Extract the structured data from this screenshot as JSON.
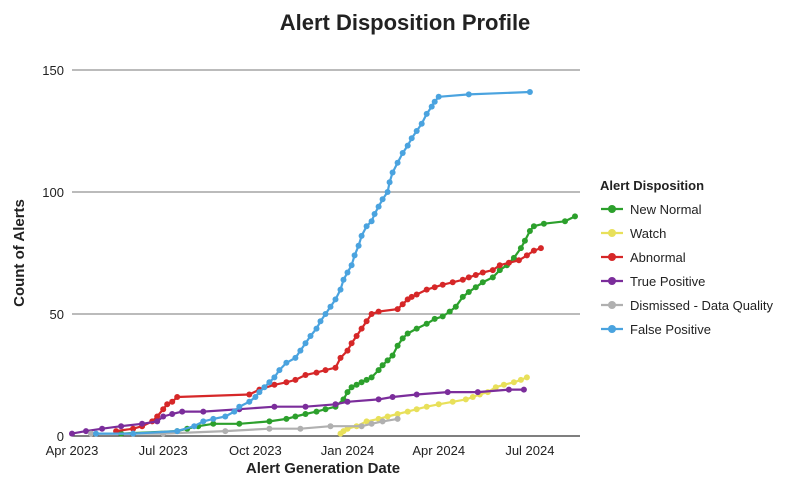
{
  "chart_data": {
    "type": "line",
    "title": "Alert Disposition Profile",
    "xlabel": "Alert Generation Date",
    "ylabel": "Count of Alerts",
    "ylim": [
      0,
      150
    ],
    "xlim": [
      "2023-04-01",
      "2024-08-20"
    ],
    "x_ticks": [
      {
        "date": "2023-04-01",
        "label": "Apr 2023"
      },
      {
        "date": "2023-07-01",
        "label": "Jul 2023"
      },
      {
        "date": "2023-10-01",
        "label": "Oct 2023"
      },
      {
        "date": "2024-01-01",
        "label": "Jan 2024"
      },
      {
        "date": "2024-04-01",
        "label": "Apr 2024"
      },
      {
        "date": "2024-07-01",
        "label": "Jul 2024"
      }
    ],
    "y_ticks": [
      0,
      50,
      100,
      150
    ],
    "grid": "horizontal",
    "legend": {
      "title": "Alert Disposition",
      "position": "right"
    },
    "series": [
      {
        "name": "New Normal",
        "color": "#2ca02c",
        "points": [
          [
            "2023-05-20",
            1
          ],
          [
            "2023-07-15",
            2
          ],
          [
            "2023-07-25",
            3
          ],
          [
            "2023-08-05",
            4
          ],
          [
            "2023-08-20",
            5
          ],
          [
            "2023-09-15",
            5
          ],
          [
            "2023-10-15",
            6
          ],
          [
            "2023-11-01",
            7
          ],
          [
            "2023-11-10",
            8
          ],
          [
            "2023-11-20",
            9
          ],
          [
            "2023-12-01",
            10
          ],
          [
            "2023-12-10",
            11
          ],
          [
            "2023-12-20",
            12
          ],
          [
            "2023-12-28",
            15
          ],
          [
            "2024-01-01",
            18
          ],
          [
            "2024-01-05",
            20
          ],
          [
            "2024-01-10",
            21
          ],
          [
            "2024-01-15",
            22
          ],
          [
            "2024-01-20",
            23
          ],
          [
            "2024-01-25",
            24
          ],
          [
            "2024-02-01",
            27
          ],
          [
            "2024-02-05",
            29
          ],
          [
            "2024-02-10",
            31
          ],
          [
            "2024-02-15",
            33
          ],
          [
            "2024-02-20",
            37
          ],
          [
            "2024-02-25",
            40
          ],
          [
            "2024-03-01",
            42
          ],
          [
            "2024-03-10",
            44
          ],
          [
            "2024-03-20",
            46
          ],
          [
            "2024-03-28",
            48
          ],
          [
            "2024-04-05",
            49
          ],
          [
            "2024-04-12",
            51
          ],
          [
            "2024-04-18",
            53
          ],
          [
            "2024-04-25",
            57
          ],
          [
            "2024-05-01",
            59
          ],
          [
            "2024-05-08",
            61
          ],
          [
            "2024-05-15",
            63
          ],
          [
            "2024-05-25",
            65
          ],
          [
            "2024-06-01",
            68
          ],
          [
            "2024-06-08",
            70
          ],
          [
            "2024-06-15",
            73
          ],
          [
            "2024-06-22",
            77
          ],
          [
            "2024-06-26",
            80
          ],
          [
            "2024-07-01",
            84
          ],
          [
            "2024-07-05",
            86
          ],
          [
            "2024-07-15",
            87
          ],
          [
            "2024-08-05",
            88
          ],
          [
            "2024-08-15",
            90
          ]
        ]
      },
      {
        "name": "Watch",
        "color": "#e8e05a",
        "points": [
          [
            "2023-12-25",
            1
          ],
          [
            "2023-12-28",
            2
          ],
          [
            "2024-01-01",
            3
          ],
          [
            "2024-01-10",
            4
          ],
          [
            "2024-01-20",
            6
          ],
          [
            "2024-02-01",
            7
          ],
          [
            "2024-02-10",
            8
          ],
          [
            "2024-02-20",
            9
          ],
          [
            "2024-03-01",
            10
          ],
          [
            "2024-03-10",
            11
          ],
          [
            "2024-03-20",
            12
          ],
          [
            "2024-04-01",
            13
          ],
          [
            "2024-04-15",
            14
          ],
          [
            "2024-04-28",
            15
          ],
          [
            "2024-05-05",
            16
          ],
          [
            "2024-05-12",
            17
          ],
          [
            "2024-05-20",
            18
          ],
          [
            "2024-05-28",
            20
          ],
          [
            "2024-06-05",
            21
          ],
          [
            "2024-06-15",
            22
          ],
          [
            "2024-06-22",
            23
          ],
          [
            "2024-06-28",
            24
          ]
        ]
      },
      {
        "name": "Abnormal",
        "color": "#d62728",
        "points": [
          [
            "2023-05-15",
            2
          ],
          [
            "2023-06-01",
            3
          ],
          [
            "2023-06-10",
            4
          ],
          [
            "2023-06-20",
            6
          ],
          [
            "2023-06-25",
            8
          ],
          [
            "2023-07-01",
            11
          ],
          [
            "2023-07-05",
            13
          ],
          [
            "2023-07-10",
            14
          ],
          [
            "2023-07-15",
            16
          ],
          [
            "2023-09-25",
            17
          ],
          [
            "2023-10-05",
            19
          ],
          [
            "2023-10-20",
            21
          ],
          [
            "2023-11-01",
            22
          ],
          [
            "2023-11-10",
            23
          ],
          [
            "2023-11-20",
            25
          ],
          [
            "2023-12-01",
            26
          ],
          [
            "2023-12-10",
            27
          ],
          [
            "2023-12-20",
            28
          ],
          [
            "2023-12-25",
            32
          ],
          [
            "2024-01-01",
            35
          ],
          [
            "2024-01-05",
            38
          ],
          [
            "2024-01-10",
            41
          ],
          [
            "2024-01-15",
            44
          ],
          [
            "2024-01-20",
            47
          ],
          [
            "2024-01-25",
            50
          ],
          [
            "2024-02-01",
            51
          ],
          [
            "2024-02-20",
            52
          ],
          [
            "2024-02-25",
            54
          ],
          [
            "2024-03-01",
            56
          ],
          [
            "2024-03-05",
            57
          ],
          [
            "2024-03-10",
            58
          ],
          [
            "2024-03-20",
            60
          ],
          [
            "2024-03-28",
            61
          ],
          [
            "2024-04-05",
            62
          ],
          [
            "2024-04-15",
            63
          ],
          [
            "2024-04-25",
            64
          ],
          [
            "2024-05-01",
            65
          ],
          [
            "2024-05-08",
            66
          ],
          [
            "2024-05-15",
            67
          ],
          [
            "2024-05-25",
            68
          ],
          [
            "2024-06-01",
            70
          ],
          [
            "2024-06-10",
            71
          ],
          [
            "2024-06-20",
            72
          ],
          [
            "2024-06-28",
            74
          ],
          [
            "2024-07-05",
            76
          ],
          [
            "2024-07-12",
            77
          ]
        ]
      },
      {
        "name": "True Positive",
        "color": "#7b2d9b",
        "points": [
          [
            "2023-04-01",
            1
          ],
          [
            "2023-04-15",
            2
          ],
          [
            "2023-05-01",
            3
          ],
          [
            "2023-05-20",
            4
          ],
          [
            "2023-06-10",
            5
          ],
          [
            "2023-06-25",
            6
          ],
          [
            "2023-07-01",
            8
          ],
          [
            "2023-07-10",
            9
          ],
          [
            "2023-07-20",
            10
          ],
          [
            "2023-08-10",
            10
          ],
          [
            "2023-09-15",
            11
          ],
          [
            "2023-10-20",
            12
          ],
          [
            "2023-11-20",
            12
          ],
          [
            "2023-12-20",
            13
          ],
          [
            "2024-01-01",
            14
          ],
          [
            "2024-02-01",
            15
          ],
          [
            "2024-02-15",
            16
          ],
          [
            "2024-03-10",
            17
          ],
          [
            "2024-04-10",
            18
          ],
          [
            "2024-05-10",
            18
          ],
          [
            "2024-06-10",
            19
          ],
          [
            "2024-06-25",
            19
          ]
        ]
      },
      {
        "name": "Dismissed - Data Quality",
        "color": "#b0b0b0",
        "points": [
          [
            "2023-04-20",
            1
          ],
          [
            "2023-06-01",
            1
          ],
          [
            "2023-07-01",
            1
          ],
          [
            "2023-09-01",
            2
          ],
          [
            "2023-10-15",
            3
          ],
          [
            "2023-11-15",
            3
          ],
          [
            "2023-12-15",
            4
          ],
          [
            "2024-01-15",
            4
          ],
          [
            "2024-01-25",
            5
          ],
          [
            "2024-02-05",
            6
          ],
          [
            "2024-02-20",
            7
          ]
        ]
      },
      {
        "name": "False Positive",
        "color": "#4aa3df",
        "points": [
          [
            "2023-04-25",
            1
          ],
          [
            "2023-06-01",
            1
          ],
          [
            "2023-07-15",
            2
          ],
          [
            "2023-08-01",
            4
          ],
          [
            "2023-08-10",
            6
          ],
          [
            "2023-08-20",
            7
          ],
          [
            "2023-09-01",
            8
          ],
          [
            "2023-09-10",
            10
          ],
          [
            "2023-09-15",
            12
          ],
          [
            "2023-09-25",
            14
          ],
          [
            "2023-10-01",
            16
          ],
          [
            "2023-10-05",
            18
          ],
          [
            "2023-10-10",
            20
          ],
          [
            "2023-10-15",
            22
          ],
          [
            "2023-10-20",
            24
          ],
          [
            "2023-10-25",
            27
          ],
          [
            "2023-11-01",
            30
          ],
          [
            "2023-11-10",
            32
          ],
          [
            "2023-11-15",
            35
          ],
          [
            "2023-11-20",
            38
          ],
          [
            "2023-11-25",
            41
          ],
          [
            "2023-12-01",
            44
          ],
          [
            "2023-12-05",
            47
          ],
          [
            "2023-12-10",
            50
          ],
          [
            "2023-12-15",
            53
          ],
          [
            "2023-12-20",
            56
          ],
          [
            "2023-12-25",
            60
          ],
          [
            "2023-12-28",
            64
          ],
          [
            "2024-01-01",
            67
          ],
          [
            "2024-01-05",
            70
          ],
          [
            "2024-01-08",
            74
          ],
          [
            "2024-01-12",
            78
          ],
          [
            "2024-01-15",
            82
          ],
          [
            "2024-01-20",
            86
          ],
          [
            "2024-01-25",
            88
          ],
          [
            "2024-01-28",
            91
          ],
          [
            "2024-02-01",
            94
          ],
          [
            "2024-02-05",
            97
          ],
          [
            "2024-02-10",
            100
          ],
          [
            "2024-02-12",
            104
          ],
          [
            "2024-02-15",
            108
          ],
          [
            "2024-02-20",
            112
          ],
          [
            "2024-02-25",
            116
          ],
          [
            "2024-03-01",
            119
          ],
          [
            "2024-03-05",
            122
          ],
          [
            "2024-03-10",
            125
          ],
          [
            "2024-03-15",
            128
          ],
          [
            "2024-03-20",
            132
          ],
          [
            "2024-03-25",
            135
          ],
          [
            "2024-03-28",
            137
          ],
          [
            "2024-04-01",
            139
          ],
          [
            "2024-05-01",
            140
          ],
          [
            "2024-07-01",
            141
          ]
        ]
      }
    ]
  }
}
